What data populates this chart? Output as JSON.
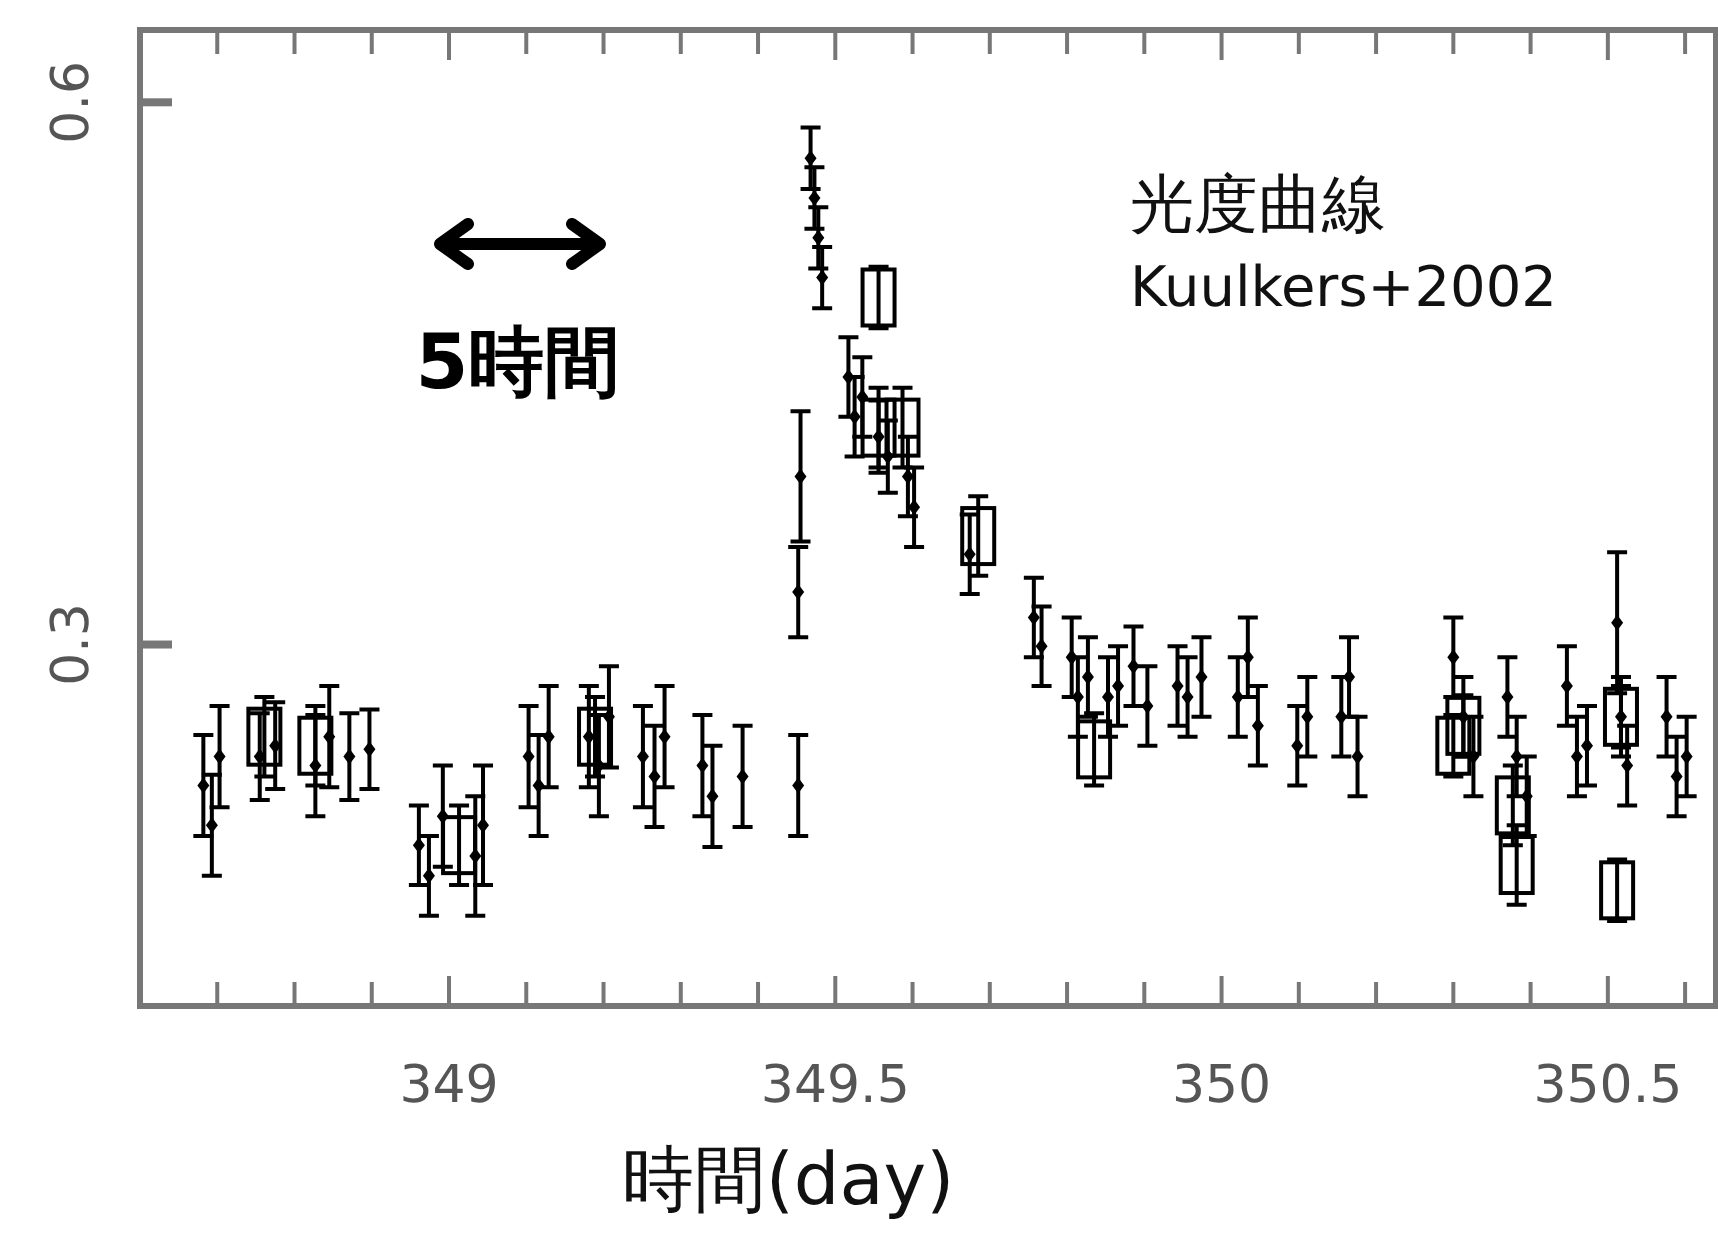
{
  "chart_data": {
    "type": "scatter",
    "xlabel": "時間(day)",
    "annotations": [
      "光度曲線",
      "Kuulkers+2002",
      "5時間"
    ],
    "xlim": [
      348.6,
      350.64
    ],
    "ylim": [
      0.1,
      0.64
    ],
    "xticks": [
      {
        "value": 348.7,
        "label": null
      },
      {
        "value": 348.8,
        "label": null
      },
      {
        "value": 348.9,
        "label": null
      },
      349,
      {
        "value": 349.1,
        "label": null
      },
      {
        "value": 349.2,
        "label": null
      },
      {
        "value": 349.3,
        "label": null
      },
      {
        "value": 349.4,
        "label": null
      },
      349.5,
      {
        "value": 349.6,
        "label": null
      },
      {
        "value": 349.7,
        "label": null
      },
      {
        "value": 349.8,
        "label": null
      },
      {
        "value": 349.9,
        "label": null
      },
      350,
      {
        "value": 350.1,
        "label": null
      },
      {
        "value": 350.2,
        "label": null
      },
      {
        "value": 350.3,
        "label": null
      },
      {
        "value": 350.4,
        "label": null
      },
      350.5,
      {
        "value": 350.6,
        "label": null
      }
    ],
    "yticks": [
      0.3,
      0.6
    ],
    "grid": false,
    "series": [
      {
        "color": "#000000",
        "marker": "diamond",
        "x": [
          348.682,
          348.693,
          348.703,
          348.755,
          348.775,
          348.827,
          348.845,
          348.871,
          348.897,
          348.961,
          348.974,
          348.992,
          349.034,
          349.044,
          349.103,
          349.116,
          349.129,
          349.181,
          349.194,
          349.207,
          349.251,
          349.266,
          349.279,
          349.328,
          349.341,
          349.38,
          349.452,
          349.452,
          349.455,
          349.468,
          349.473,
          349.478,
          349.483,
          349.517,
          349.525,
          349.535,
          349.556,
          349.568,
          349.594,
          349.602,
          349.674,
          349.757,
          349.767,
          349.806,
          349.814,
          349.827,
          349.853,
          349.866,
          349.886,
          349.904,
          349.943,
          349.956,
          349.974,
          350.021,
          350.034,
          350.047,
          350.098,
          350.111,
          350.155,
          350.165,
          350.176,
          350.3,
          350.313,
          350.326,
          350.37,
          350.382,
          350.395,
          350.447,
          350.46,
          350.473,
          350.512,
          350.517,
          350.525,
          350.576,
          350.589,
          350.602
        ],
        "values": [
          0.222,
          0.2,
          0.238,
          0.238,
          0.244,
          0.233,
          0.249,
          0.238,
          0.242,
          0.189,
          0.172,
          0.205,
          0.183,
          0.2,
          0.238,
          0.222,
          0.249,
          0.249,
          0.233,
          0.26,
          0.238,
          0.227,
          0.249,
          0.233,
          0.216,
          0.227,
          0.222,
          0.329,
          0.393,
          0.569,
          0.547,
          0.525,
          0.503,
          0.448,
          0.426,
          0.437,
          0.415,
          0.404,
          0.393,
          0.376,
          0.35,
          0.315,
          0.299,
          0.293,
          0.271,
          0.282,
          0.271,
          0.277,
          0.288,
          0.266,
          0.277,
          0.271,
          0.282,
          0.271,
          0.293,
          0.255,
          0.244,
          0.26,
          0.26,
          0.282,
          0.238,
          0.293,
          0.26,
          0.238,
          0.271,
          0.238,
          0.216,
          0.277,
          0.238,
          0.244,
          0.312,
          0.26,
          0.233,
          0.26,
          0.227,
          0.238
        ],
        "errors": [
          0.028,
          0.028,
          0.028,
          0.024,
          0.024,
          0.028,
          0.028,
          0.024,
          0.022,
          0.022,
          0.022,
          0.028,
          0.033,
          0.033,
          0.028,
          0.028,
          0.028,
          0.028,
          0.028,
          0.028,
          0.028,
          0.028,
          0.028,
          0.028,
          0.028,
          0.028,
          0.028,
          0.025,
          0.036,
          0.017,
          0.017,
          0.017,
          0.017,
          0.022,
          0.022,
          0.022,
          0.02,
          0.02,
          0.022,
          0.022,
          0.022,
          0.022,
          0.022,
          0.022,
          0.022,
          0.022,
          0.022,
          0.022,
          0.022,
          0.022,
          0.022,
          0.022,
          0.022,
          0.022,
          0.022,
          0.022,
          0.022,
          0.022,
          0.022,
          0.022,
          0.022,
          0.022,
          0.022,
          0.022,
          0.022,
          0.022,
          0.022,
          0.022,
          0.022,
          0.022,
          0.039,
          0.022,
          0.022,
          0.022,
          0.022,
          0.022
        ]
      },
      {
        "color": "#000000",
        "marker": "square",
        "x": [
          348.761,
          348.827,
          349.013,
          349.189,
          349.556,
          349.556,
          349.587,
          349.685,
          349.835,
          350.3,
          350.313,
          350.377,
          350.382,
          350.517,
          350.512
        ],
        "values": [
          0.249,
          0.244,
          0.189,
          0.249,
          0.492,
          0.42,
          0.42,
          0.36,
          0.242,
          0.244,
          0.255,
          0.211,
          0.178,
          0.26,
          0.164
        ],
        "errors": [
          0.022,
          0.022,
          0.022,
          0.022,
          0.017,
          0.022,
          0.022,
          0.022,
          0.02,
          0.017,
          0.017,
          0.022,
          0.022,
          0.017,
          0.017
        ]
      }
    ]
  }
}
